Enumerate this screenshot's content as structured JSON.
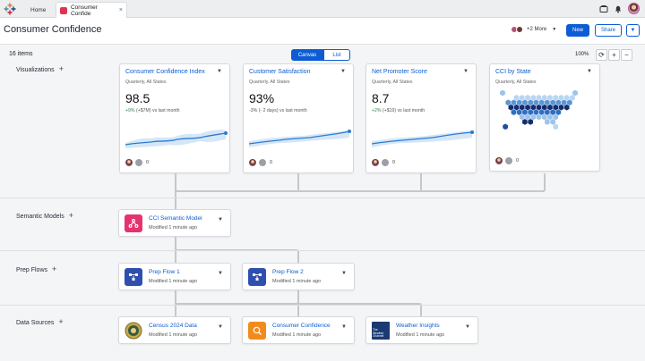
{
  "topbar": {
    "home_tab": "Home",
    "active_tab": "Consumer Confide",
    "close_glyph": "×",
    "icons": [
      "app-grid-icon",
      "folder-icon",
      "bell-icon",
      "avatar"
    ]
  },
  "header": {
    "title": "Consumer Confidence",
    "collaborators_more": "+2 More",
    "new_label": "New",
    "share_label": "Share"
  },
  "toolbar": {
    "items_count": "16 items",
    "view_canvas": "Canvas",
    "view_list": "List",
    "zoom": "100%"
  },
  "rows": {
    "visualizations": "Visualizations",
    "semantic_models": "Semantic Models",
    "prep_flows": "Prep Flows",
    "data_sources": "Data Sources"
  },
  "visualizations": [
    {
      "title": "Consumer Confidence Index",
      "subtitle": "Quarterly, All States",
      "value": "98.5",
      "delta_pct": "+9%",
      "delta_detail": "(+$7M) vs last month",
      "comments": "0"
    },
    {
      "title": "Customer Satisfaction",
      "subtitle": "Quarterly, All States",
      "value": "93%",
      "delta_pct": "-3%",
      "delta_detail": "(- 2 days) vs last month",
      "comments": "0"
    },
    {
      "title": "Net Promoter Score",
      "subtitle": "Quarterly, All States",
      "value": "8.7",
      "delta_pct": "+2%",
      "delta_detail": "(+$19) vs last month",
      "comments": "0"
    },
    {
      "title": "CCI by State",
      "subtitle": "Quarterly, All States",
      "comments": "0"
    }
  ],
  "semantic_models": [
    {
      "title": "CCI Semantic Model",
      "modified": "Modified 1 minute ago"
    }
  ],
  "prep_flows": [
    {
      "title": "Prep Flow 1",
      "modified": "Modified 1 minute ago"
    },
    {
      "title": "Prep Flow 2",
      "modified": "Modified 1 minute ago"
    }
  ],
  "data_sources": [
    {
      "title": "Census 2024 Data",
      "modified": "Modified 1 minute ago"
    },
    {
      "title": "Consumer Confidence",
      "modified": "Modified 1 minute ago"
    },
    {
      "title": "Weather Insights",
      "modified": "Modified 1 minute ago",
      "logo_text": "The Weather Channel"
    }
  ],
  "colors": {
    "accent": "#0b5cd5",
    "semantic_icon": "#e6336f",
    "prep_icon": "#2f4fb0",
    "consumer_icon": "#f28b1e",
    "weather_icon": "#1a3a72"
  }
}
